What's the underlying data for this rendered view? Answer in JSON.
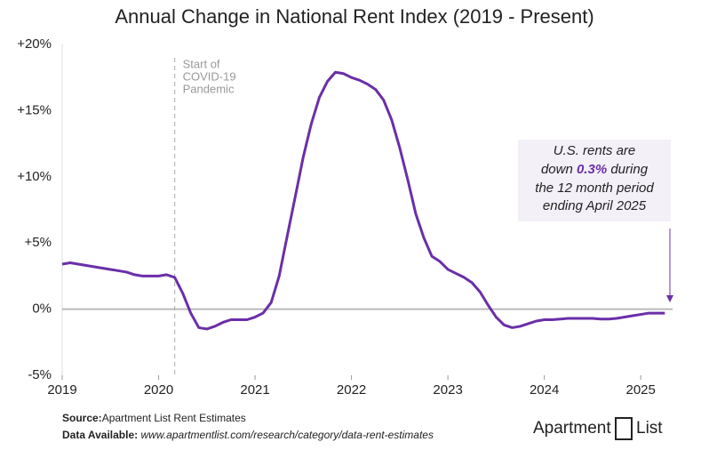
{
  "chart_data": {
    "type": "line",
    "title": "Annual Change in National Rent Index (2019 - Present)",
    "x": [
      2019,
      2019.083,
      2019.167,
      2019.25,
      2019.333,
      2019.417,
      2019.5,
      2019.583,
      2019.667,
      2019.75,
      2019.833,
      2019.917,
      2020,
      2020.083,
      2020.167,
      2020.25,
      2020.333,
      2020.417,
      2020.5,
      2020.583,
      2020.667,
      2020.75,
      2020.833,
      2020.917,
      2021,
      2021.083,
      2021.167,
      2021.25,
      2021.333,
      2021.417,
      2021.5,
      2021.583,
      2021.667,
      2021.75,
      2021.833,
      2021.917,
      2022,
      2022.083,
      2022.167,
      2022.25,
      2022.333,
      2022.417,
      2022.5,
      2022.583,
      2022.667,
      2022.75,
      2022.833,
      2022.917,
      2023,
      2023.083,
      2023.167,
      2023.25,
      2023.333,
      2023.417,
      2023.5,
      2023.583,
      2023.667,
      2023.75,
      2023.833,
      2023.917,
      2024,
      2024.083,
      2024.167,
      2024.25,
      2024.333,
      2024.417,
      2024.5,
      2024.583,
      2024.667,
      2024.75,
      2024.833,
      2024.917,
      2025,
      2025.083,
      2025.167,
      2025.25
    ],
    "series": [
      {
        "name": "Annual Change",
        "color": "#6a2fa8",
        "values": [
          3.4,
          3.5,
          3.4,
          3.3,
          3.2,
          3.1,
          3.0,
          2.9,
          2.8,
          2.6,
          2.5,
          2.5,
          2.5,
          2.6,
          2.4,
          1.2,
          -0.3,
          -1.4,
          -1.5,
          -1.3,
          -1.0,
          -0.8,
          -0.8,
          -0.8,
          -0.6,
          -0.3,
          0.5,
          2.5,
          5.5,
          8.5,
          11.5,
          14.0,
          16.0,
          17.2,
          17.9,
          17.8,
          17.5,
          17.3,
          17.0,
          16.6,
          15.8,
          14.3,
          12.2,
          9.8,
          7.2,
          5.4,
          4.0,
          3.6,
          3.0,
          2.7,
          2.4,
          2.0,
          1.3,
          0.3,
          -0.6,
          -1.2,
          -1.4,
          -1.3,
          -1.1,
          -0.9,
          -0.8,
          -0.8,
          -0.75,
          -0.7,
          -0.7,
          -0.7,
          -0.7,
          -0.75,
          -0.75,
          -0.7,
          -0.6,
          -0.5,
          -0.4,
          -0.3,
          -0.3,
          -0.3
        ]
      }
    ],
    "xlim": [
      2019,
      2025.33
    ],
    "xticks": [
      2019,
      2020,
      2021,
      2022,
      2023,
      2024,
      2025
    ],
    "ylim": [
      -5,
      20
    ],
    "yticks": [
      {
        "value": -5,
        "label": "-5%"
      },
      {
        "value": 0,
        "label": "0%"
      },
      {
        "value": 5,
        "label": "+5%"
      },
      {
        "value": 10,
        "label": "+10%"
      },
      {
        "value": 15,
        "label": "+15%"
      },
      {
        "value": 20,
        "label": "+20%"
      }
    ],
    "grid": false,
    "event": {
      "x": 2020.167,
      "lines": [
        "Start of",
        "COVID-19",
        "Pandemic"
      ]
    },
    "callout": {
      "line1": "U.S. rents are",
      "before": "down",
      "highlight": "0.3%",
      "after": "during",
      "line3": "the 12 month period",
      "line4": "ending April 2025"
    },
    "source": {
      "label": "Source:",
      "text": "Apartment List Rent Estimates"
    },
    "available": {
      "label": "Data Available:",
      "text": "www.apartmentlist.com/research/category/data-rent-estimates"
    },
    "logo": {
      "left": "Apartment",
      "right": "List"
    }
  }
}
